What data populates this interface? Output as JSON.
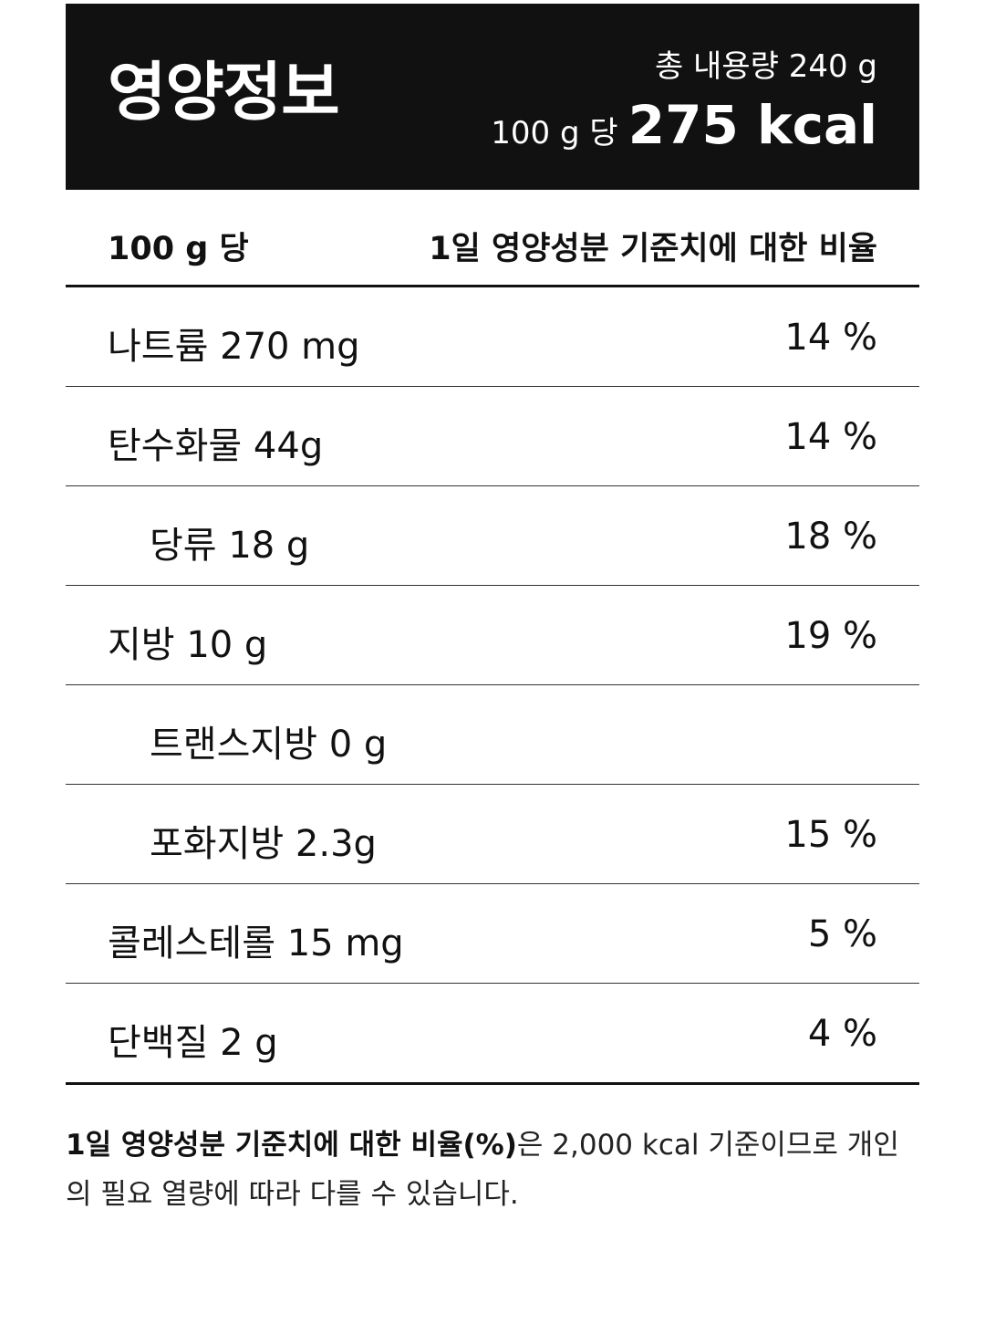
{
  "header": {
    "title": "영양정보",
    "total_content": "총 내용량 240 g",
    "per_label": "100 g 당",
    "calories": "275 kcal"
  },
  "table_header": {
    "left": "100 g 당",
    "right": "1일 영양성분 기준치에 대한 비율"
  },
  "rows": [
    {
      "name": "나트륨 270 mg",
      "percent": "14 %"
    },
    {
      "name": "탄수화물 44g",
      "percent": "14 %"
    },
    {
      "name": "당류 18 g",
      "percent": "18 %"
    },
    {
      "name": "지방 10 g",
      "percent": "19 %"
    },
    {
      "name": "트랜스지방 0 g",
      "percent": ""
    },
    {
      "name": "포화지방 2.3g",
      "percent": "15 %"
    },
    {
      "name": "콜레스테롤 15 mg",
      "percent": "5 %"
    },
    {
      "name": "단백질 2 g",
      "percent": "4 %"
    }
  ],
  "footnote": {
    "bold": "1일 영양성분 기준치에 대한 비율(%)",
    "text": "은 2,000 kcal 기준이므로 개인의 필요 열량에 따라 다를 수 있습니다."
  }
}
